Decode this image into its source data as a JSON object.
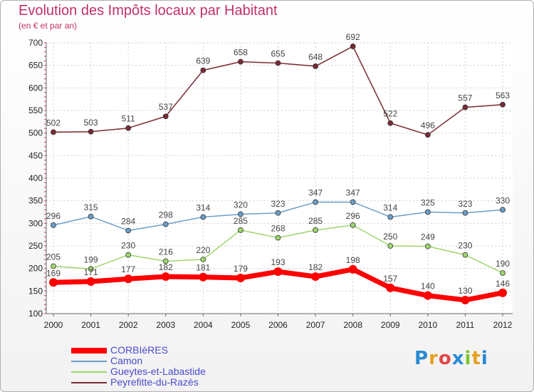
{
  "header": {
    "title": "Evolution des Impôts locaux par Habitant",
    "subtitle": "(en € et par an)"
  },
  "logo": {
    "text": "Proxiti",
    "letters": [
      "P",
      "r",
      "o",
      "x",
      "i",
      "t",
      "i"
    ],
    "colors": [
      "#2a8ad4",
      "#e8a020",
      "#e04848",
      "#2a8ad4",
      "#7cc42a",
      "#e8a020",
      "#2a8ad4"
    ]
  },
  "chart_data": {
    "type": "line",
    "title": "Evolution des Impôts locaux par Habitant",
    "subtitle": "(en € et par an)",
    "x": [
      "2000",
      "2001",
      "2002",
      "2003",
      "2004",
      "2005",
      "2006",
      "2007",
      "2008",
      "2009",
      "2010",
      "2011",
      "2012"
    ],
    "ylim": [
      100,
      700
    ],
    "yticks": [
      100,
      150,
      200,
      250,
      300,
      350,
      400,
      450,
      500,
      550,
      600,
      650,
      700
    ],
    "grid": true,
    "legend_position": "bottom-left",
    "series": [
      {
        "name": "CORBIèRES",
        "color": "#ff0000",
        "width": 7,
        "marker": 6,
        "values": [
          169,
          171,
          177,
          182,
          181,
          179,
          193,
          182,
          198,
          157,
          140,
          130,
          146
        ]
      },
      {
        "name": "Camon",
        "color": "#6b9ec8",
        "width": 1.5,
        "marker": 3.5,
        "values": [
          296,
          315,
          284,
          298,
          314,
          320,
          323,
          347,
          347,
          314,
          325,
          323,
          330
        ]
      },
      {
        "name": "Gueytes-et-Labastide",
        "color": "#9ed66b",
        "width": 1.5,
        "marker": 3.5,
        "values": [
          205,
          199,
          230,
          216,
          220,
          285,
          268,
          285,
          296,
          250,
          249,
          230,
          190
        ]
      },
      {
        "name": "Peyrefitte-du-Razès",
        "color": "#7a2a32",
        "width": 1.5,
        "marker": 3.5,
        "values": [
          502,
          503,
          511,
          537,
          639,
          658,
          655,
          648,
          692,
          522,
          496,
          557,
          563
        ]
      }
    ]
  }
}
